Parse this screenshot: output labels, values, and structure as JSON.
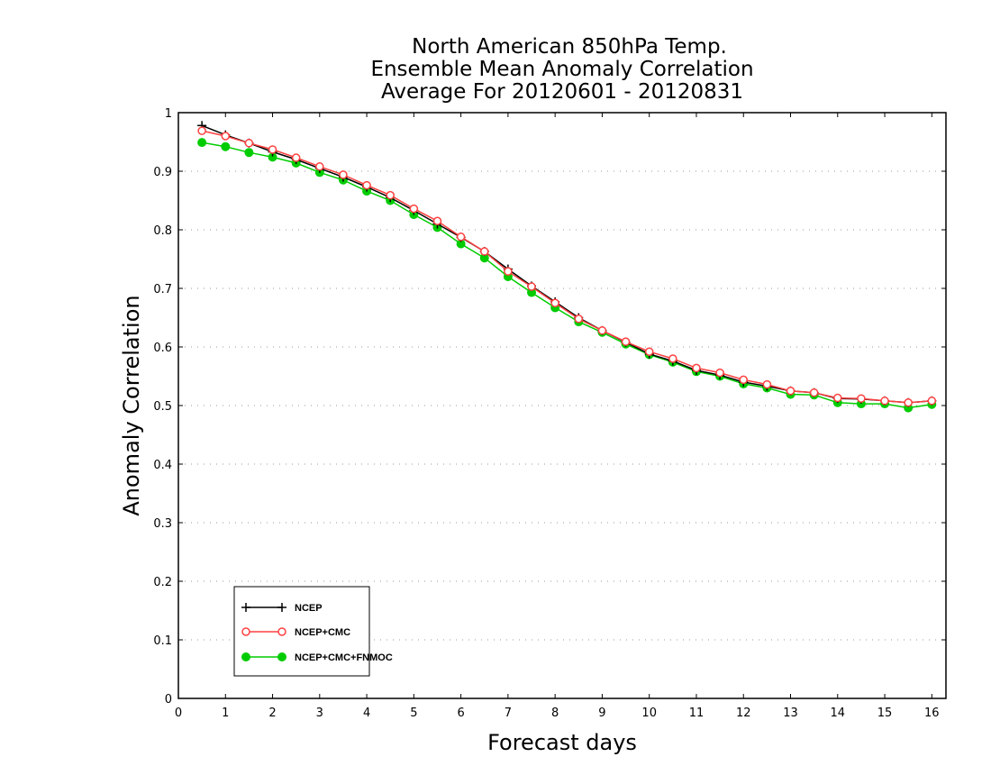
{
  "chart_data": {
    "type": "line",
    "title": [
      "North American 850hPa Temp.",
      "Ensemble Mean Anomaly Correlation",
      "Average For 20120601 - 20120831"
    ],
    "xlabel": "Forecast days",
    "ylabel": "Anomaly Correlation",
    "xlim": [
      0,
      16.3
    ],
    "ylim": [
      0,
      1
    ],
    "xticks": [
      "0",
      "1",
      "2",
      "3",
      "4",
      "5",
      "6",
      "7",
      "8",
      "9",
      "10",
      "11",
      "12",
      "13",
      "14",
      "15",
      "16"
    ],
    "yticks": [
      "0",
      "0.1",
      "0.2",
      "0.3",
      "0.4",
      "0.5",
      "0.6",
      "0.7",
      "0.8",
      "0.9",
      "1"
    ],
    "grid": "horizontal dotted",
    "legend_position": "bottom-left",
    "x": [
      0.5,
      1,
      1.5,
      2,
      2.5,
      3,
      3.5,
      4,
      4.5,
      5,
      5.5,
      6,
      6.5,
      7,
      7.5,
      8,
      8.5,
      9,
      9.5,
      10,
      10.5,
      11,
      11.5,
      12,
      12.5,
      13,
      13.5,
      14,
      14.5,
      15,
      15.5,
      16
    ],
    "series": [
      {
        "name": "NCEP",
        "color": "#000000",
        "marker": "plus",
        "values": [
          0.978,
          0.962,
          0.948,
          0.933,
          0.92,
          0.905,
          0.89,
          0.873,
          0.855,
          0.833,
          0.81,
          0.787,
          0.763,
          0.733,
          0.704,
          0.677,
          0.65,
          0.628,
          0.608,
          0.588,
          0.576,
          0.56,
          0.552,
          0.54,
          0.533,
          0.525,
          0.522,
          0.512,
          0.511,
          0.508,
          0.505,
          0.508
        ]
      },
      {
        "name": "NCEP+CMC",
        "color": "#ff4040",
        "marker": "open-circle",
        "values": [
          0.969,
          0.96,
          0.948,
          0.937,
          0.923,
          0.908,
          0.894,
          0.876,
          0.859,
          0.836,
          0.815,
          0.788,
          0.763,
          0.729,
          0.703,
          0.675,
          0.648,
          0.628,
          0.609,
          0.592,
          0.58,
          0.564,
          0.556,
          0.544,
          0.536,
          0.525,
          0.522,
          0.513,
          0.512,
          0.508,
          0.505,
          0.508
        ]
      },
      {
        "name": "NCEP+CMC+FNMOC",
        "color": "#00cc00",
        "marker": "filled-circle",
        "values": [
          0.949,
          0.942,
          0.932,
          0.924,
          0.914,
          0.898,
          0.885,
          0.866,
          0.85,
          0.826,
          0.804,
          0.776,
          0.752,
          0.72,
          0.693,
          0.667,
          0.643,
          0.625,
          0.605,
          0.587,
          0.574,
          0.558,
          0.55,
          0.537,
          0.53,
          0.519,
          0.518,
          0.505,
          0.503,
          0.503,
          0.496,
          0.502
        ]
      }
    ]
  }
}
